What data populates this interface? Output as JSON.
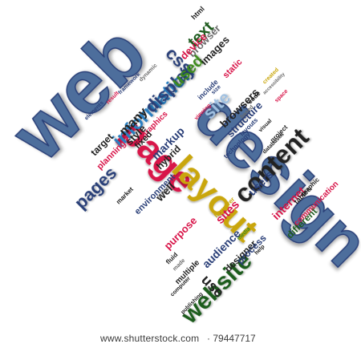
{
  "palette": {
    "blue": "#4d6e9c",
    "navy": "#2a3f78",
    "red": "#d8164a",
    "green": "#3d8a1c",
    "darkgreen": "#1f5c1f",
    "gray": "#6b6b6b",
    "yellow": "#c9a60a",
    "teal": "#2b8a8a",
    "lightgray": "#a0a0a0",
    "black": "#222222"
  },
  "cloud": {
    "web": "web",
    "design": "design",
    "page": "page",
    "layout": "layout",
    "content": "content",
    "website": "website",
    "information": "information",
    "display": "display",
    "pages": "pages",
    "css": "css",
    "used": "used",
    "site": "site",
    "many": "many",
    "style": "style",
    "browsers": "browsers",
    "structure": "structure",
    "text": "text",
    "browser": "browser",
    "images": "images",
    "device": "device",
    "markup": "markup",
    "internet": "internet",
    "sites": "sites",
    "users": "users",
    "audience": "audience",
    "purpose": "purpose",
    "designer": "designer",
    "process": "process",
    "different": "different",
    "communication": "communication",
    "use": "use",
    "target": "target",
    "planning": "planning",
    "hybrid": "hybrid",
    "graphics": "graphics",
    "fixed": "fixed",
    "environment": "environment",
    "well": "well",
    "static": "static",
    "html": "html",
    "dynamic": "dynamic",
    "framework": "framework",
    "multiple": "multiple",
    "tables": "tables",
    "layouts": "layouts",
    "code": "code",
    "market": "market",
    "however": "however",
    "project": "project",
    "graphic": "graphic",
    "publishing": "publishing",
    "elements": "elements",
    "technology": "technology",
    "include": "include",
    "viewing": "viewing",
    "visual": "visual",
    "computer": "computer",
    "space": "space",
    "databases": "databases",
    "result": "result",
    "accessibility": "accessibility",
    "created": "created",
    "help": "help",
    "made": "made",
    "size": "size",
    "range": "range",
    "fluid": "fluid",
    "based": "based",
    "media": "media"
  },
  "footer": {
    "url": "www.shutterstock.com",
    "sep": "·",
    "id": "79447717"
  }
}
